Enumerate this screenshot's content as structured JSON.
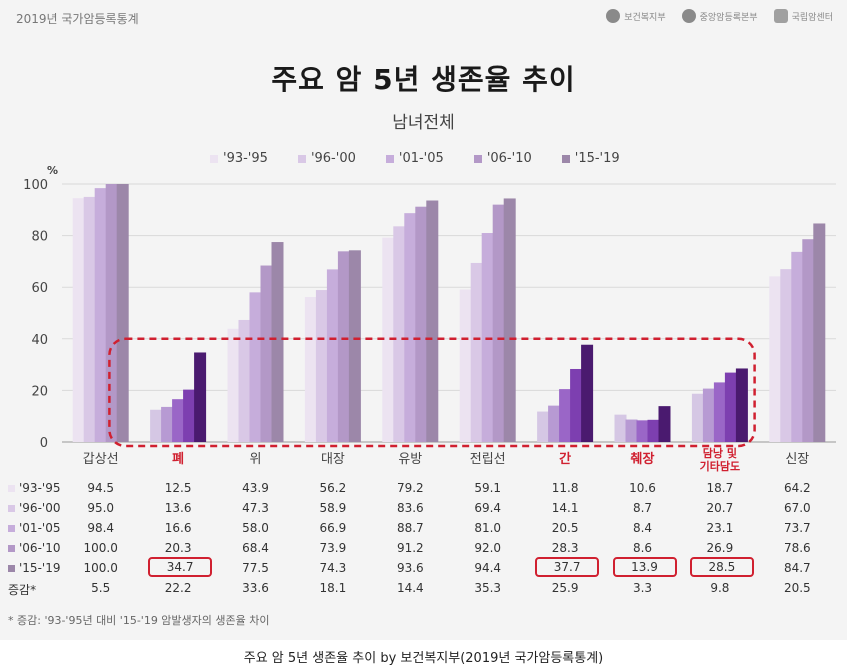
{
  "header": {
    "report": "2019년 국가암등록통계",
    "logos": [
      "보건복지부",
      "중앙암등록본부",
      "국립암센터"
    ]
  },
  "chart_data": {
    "type": "bar",
    "title": "주요 암 5년 생존율 추이",
    "subtitle": "남녀전체",
    "ylabel": "%",
    "ylim": [
      0,
      100
    ],
    "yticks": [
      0,
      20,
      40,
      60,
      80,
      100
    ],
    "grid": true,
    "legend": "top",
    "categories": [
      "갑상선",
      "폐",
      "위",
      "대장",
      "유방",
      "전립선",
      "간",
      "췌장",
      "담낭 및 기타담도",
      "신장"
    ],
    "highlight_categories": [
      1,
      6,
      7,
      8
    ],
    "highlight_color": "#d02030",
    "series": [
      {
        "name": "'93-'95",
        "color": "#ece3f1",
        "values": [
          94.5,
          12.5,
          43.9,
          56.2,
          79.2,
          59.1,
          11.8,
          10.6,
          18.7,
          64.2
        ]
      },
      {
        "name": "'96-'00",
        "color": "#d9c8e6",
        "values": [
          95.0,
          13.6,
          47.3,
          58.9,
          83.6,
          69.4,
          14.1,
          8.7,
          20.7,
          67.0
        ]
      },
      {
        "name": "'01-'05",
        "color": "#c6addb",
        "values": [
          98.4,
          16.6,
          58.0,
          66.9,
          88.7,
          81.0,
          20.5,
          8.4,
          23.1,
          73.7
        ]
      },
      {
        "name": "'06-'10",
        "color": "#b398c7",
        "values": [
          100.0,
          20.3,
          68.4,
          73.9,
          91.2,
          92.0,
          28.3,
          8.6,
          26.9,
          78.6
        ]
      },
      {
        "name": "'15-'19",
        "color": "#9c87a9",
        "values": [
          100.0,
          34.7,
          77.5,
          74.3,
          93.6,
          94.4,
          37.7,
          13.9,
          28.5,
          84.7
        ]
      }
    ],
    "highlight_series_colors": [
      "#d5c7e4",
      "#b79ad3",
      "#9a66c7",
      "#7d3fb0",
      "#4a1a6f"
    ]
  },
  "table": {
    "diff_label": "증감*",
    "diff": [
      5.5,
      22.2,
      33.6,
      18.1,
      14.4,
      35.3,
      25.9,
      3.3,
      9.8,
      20.5
    ],
    "circled": [
      [
        4,
        1
      ],
      [
        4,
        6
      ],
      [
        4,
        7
      ],
      [
        4,
        8
      ]
    ]
  },
  "footnote": "* 증감: '93-'95년 대비 '15-'19 암발생자의 생존율 차이",
  "caption": "주요 암 5년 생존율 추이 by 보건복지부(2019년 국가암등록통계)"
}
